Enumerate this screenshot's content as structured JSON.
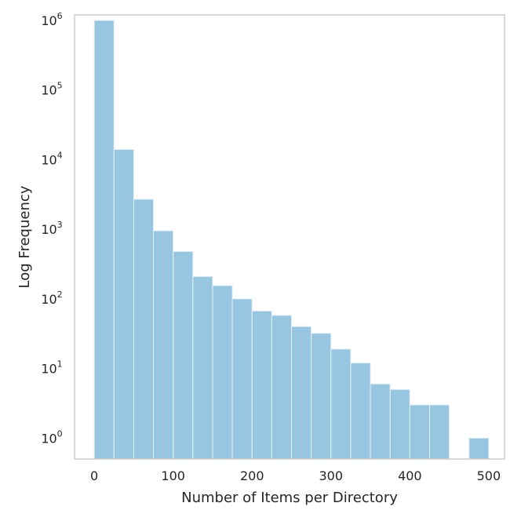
{
  "chart_data": {
    "type": "bar",
    "subtype": "histogram",
    "title": "",
    "xlabel": "Number of Items per Directory",
    "ylabel": "Log Frequency",
    "yscale": "log",
    "grid": false,
    "bar_color": "#98c6e0",
    "bar_edge_color": "#e6f1f8",
    "spine_color": "#cccccc",
    "text_color": "#262626",
    "xlim": [
      -25,
      520
    ],
    "ylim": [
      0.5,
      1200000
    ],
    "xticks": [
      {
        "value": 0,
        "label": "0"
      },
      {
        "value": 100,
        "label": "100"
      },
      {
        "value": 200,
        "label": "200"
      },
      {
        "value": 300,
        "label": "300"
      },
      {
        "value": 400,
        "label": "400"
      },
      {
        "value": 500,
        "label": "500"
      }
    ],
    "yticks": [
      {
        "value": 1,
        "base": "10",
        "exp": "0"
      },
      {
        "value": 10,
        "base": "10",
        "exp": "1"
      },
      {
        "value": 100,
        "base": "10",
        "exp": "2"
      },
      {
        "value": 1000,
        "base": "10",
        "exp": "3"
      },
      {
        "value": 10000,
        "base": "10",
        "exp": "4"
      },
      {
        "value": 100000,
        "base": "10",
        "exp": "5"
      },
      {
        "value": 1000000,
        "base": "10",
        "exp": "6"
      }
    ],
    "bins": [
      {
        "x0": 0,
        "x1": 25,
        "value": 1000000
      },
      {
        "x0": 25,
        "x1": 50,
        "value": 14000
      },
      {
        "x0": 50,
        "x1": 75,
        "value": 2700
      },
      {
        "x0": 75,
        "x1": 100,
        "value": 950
      },
      {
        "x0": 100,
        "x1": 125,
        "value": 480
      },
      {
        "x0": 125,
        "x1": 150,
        "value": 210
      },
      {
        "x0": 150,
        "x1": 175,
        "value": 155
      },
      {
        "x0": 175,
        "x1": 200,
        "value": 100
      },
      {
        "x0": 200,
        "x1": 225,
        "value": 67
      },
      {
        "x0": 225,
        "x1": 250,
        "value": 58
      },
      {
        "x0": 250,
        "x1": 275,
        "value": 40
      },
      {
        "x0": 275,
        "x1": 300,
        "value": 32
      },
      {
        "x0": 300,
        "x1": 325,
        "value": 19
      },
      {
        "x0": 325,
        "x1": 350,
        "value": 12
      },
      {
        "x0": 350,
        "x1": 375,
        "value": 6
      },
      {
        "x0": 375,
        "x1": 400,
        "value": 5
      },
      {
        "x0": 400,
        "x1": 425,
        "value": 3
      },
      {
        "x0": 425,
        "x1": 450,
        "value": 3
      },
      {
        "x0": 450,
        "x1": 475,
        "value": 0
      },
      {
        "x0": 475,
        "x1": 500,
        "value": 1
      }
    ]
  }
}
